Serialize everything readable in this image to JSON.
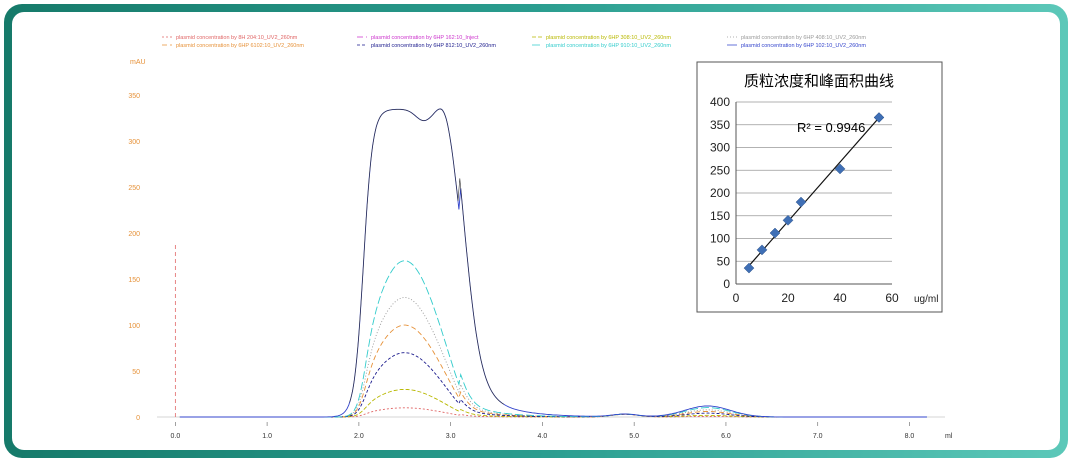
{
  "chart_data": [
    {
      "type": "line",
      "x_unit": "ml",
      "y_unit": "mAU",
      "xlim": [
        -0.2,
        8.3
      ],
      "ylim": [
        0,
        375
      ],
      "x_ticks": [
        "0.0",
        "1.0",
        "2.0",
        "3.0",
        "4.0",
        "5.0",
        "6.0",
        "7.0",
        "8.0"
      ],
      "y_ticks": [
        "0",
        "50",
        "100",
        "150",
        "200",
        "250",
        "300",
        "350"
      ],
      "legend_position": "top",
      "series": [
        {
          "name": "plasmid concentration by 8H 204:10_UV2_260nm",
          "color": "#e06666",
          "dash": "2,2",
          "peak": 10
        },
        {
          "name": "plasmid concentration by 6HP 162:10_Inject",
          "color": "#cc33cc",
          "dash": "6,3",
          "peak": 0
        },
        {
          "name": "plasmid concentration by 6HP 308:10_UV2_260nm",
          "color": "#b8b800",
          "dash": "4,2",
          "peak": 30
        },
        {
          "name": "plasmid concentration by 6HP 408:10_UV2_260nm",
          "color": "#999999",
          "dash": "1,2",
          "peak": 130
        },
        {
          "name": "plasmid concentration by 6HP 6102:10_UV2_260nm",
          "color": "#e69138",
          "dash": "5,3",
          "peak": 100
        },
        {
          "name": "plasmid concentration by 6HP 812:10_UV2_260nm",
          "color": "#1a1a8c",
          "dash": "3,2",
          "peak": 70
        },
        {
          "name": "plasmid concentration by 6HP 910:10_UV2_260nm",
          "color": "#33cccc",
          "dash": "8,3",
          "peak": 170
        },
        {
          "name": "plasmid concentration by 6HP 102:10_UV2_260nm",
          "color": "#3344cc",
          "dash": "",
          "peak": 360
        }
      ]
    },
    {
      "type": "scatter",
      "title": "质粒浓度和峰面积曲线",
      "xlabel": "ug/ml",
      "xlim": [
        0,
        60
      ],
      "ylim": [
        0,
        400
      ],
      "x_ticks": [
        0,
        20,
        40,
        60
      ],
      "y_ticks": [
        0,
        50,
        100,
        150,
        200,
        250,
        300,
        350,
        400
      ],
      "annotation": "R² = 0.9946",
      "points": [
        {
          "x": 5,
          "y": 35
        },
        {
          "x": 10,
          "y": 75
        },
        {
          "x": 15,
          "y": 112
        },
        {
          "x": 20,
          "y": 140
        },
        {
          "x": 25,
          "y": 180
        },
        {
          "x": 40,
          "y": 253
        },
        {
          "x": 55,
          "y": 366
        }
      ],
      "trendline": {
        "x": [
          5,
          56
        ],
        "y": [
          40,
          372
        ]
      },
      "marker_color": "#3f6fb5",
      "grid": true
    }
  ]
}
